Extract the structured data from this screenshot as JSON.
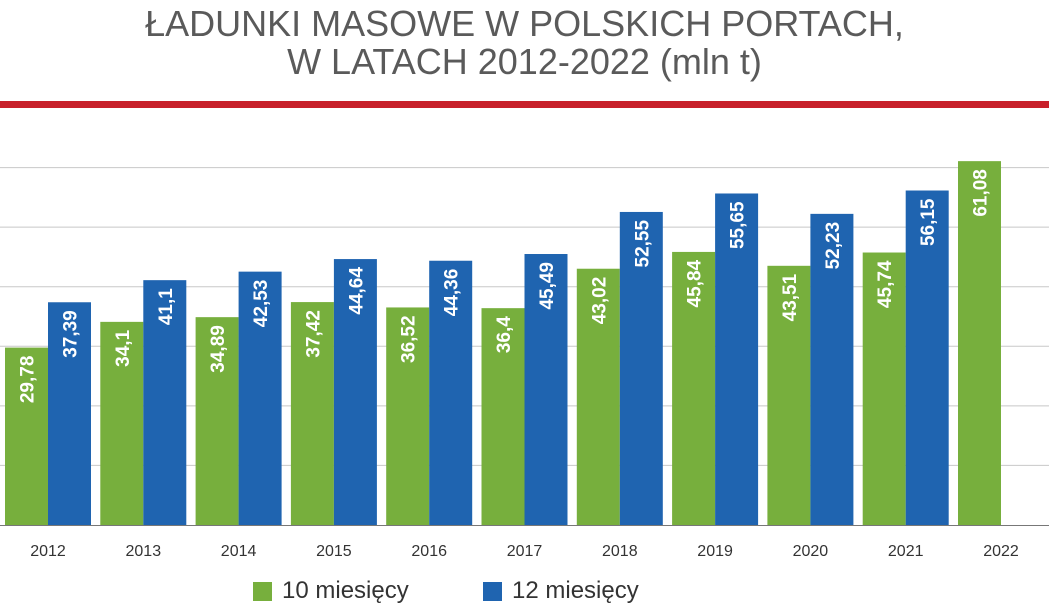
{
  "title_line1": "ŁADUNKI MASOWE W POLSKICH PORTACH,",
  "title_line2": "W LATACH 2012-2022 (mln t)",
  "colors": {
    "accent_rule": "#c8202a",
    "series_10": "#77af3d",
    "series_12": "#1f64b0",
    "grid": "#c8c8c8",
    "axis": "#777777",
    "tick_text": "#333333",
    "bar_label": "#ffffff"
  },
  "chart_data": {
    "type": "bar",
    "title": "ŁADUNKI MASOWE W POLSKICH PORTACH, W LATACH 2012-2022 (mln t)",
    "xlabel": "",
    "ylabel": "",
    "categories": [
      "2012",
      "2013",
      "2014",
      "2015",
      "2016",
      "2017",
      "2018",
      "2019",
      "2020",
      "2021",
      "2022"
    ],
    "series": [
      {
        "name": "10 miesięcy",
        "values": [
          29.78,
          34.1,
          34.89,
          37.42,
          36.52,
          36.4,
          43.02,
          45.84,
          43.51,
          45.74,
          61.08
        ],
        "labels": [
          "29,78",
          "34,1",
          "34,89",
          "37,42",
          "36,52",
          "36,4",
          "43,02",
          "45,84",
          "43,51",
          "45,74",
          "61,08"
        ]
      },
      {
        "name": "12 miesięcy",
        "values": [
          37.39,
          41.1,
          42.53,
          44.64,
          44.36,
          45.49,
          52.55,
          55.65,
          52.23,
          56.15,
          null
        ],
        "labels": [
          "37,39",
          "41,1",
          "42,53",
          "44,64",
          "44,36",
          "45,49",
          "52,55",
          "55,65",
          "52,23",
          "56,15",
          ""
        ]
      }
    ],
    "ylim": [
      0,
      70
    ],
    "grid": true,
    "legend": "bottom-center",
    "bar_labels": "inside-top-rotated"
  }
}
